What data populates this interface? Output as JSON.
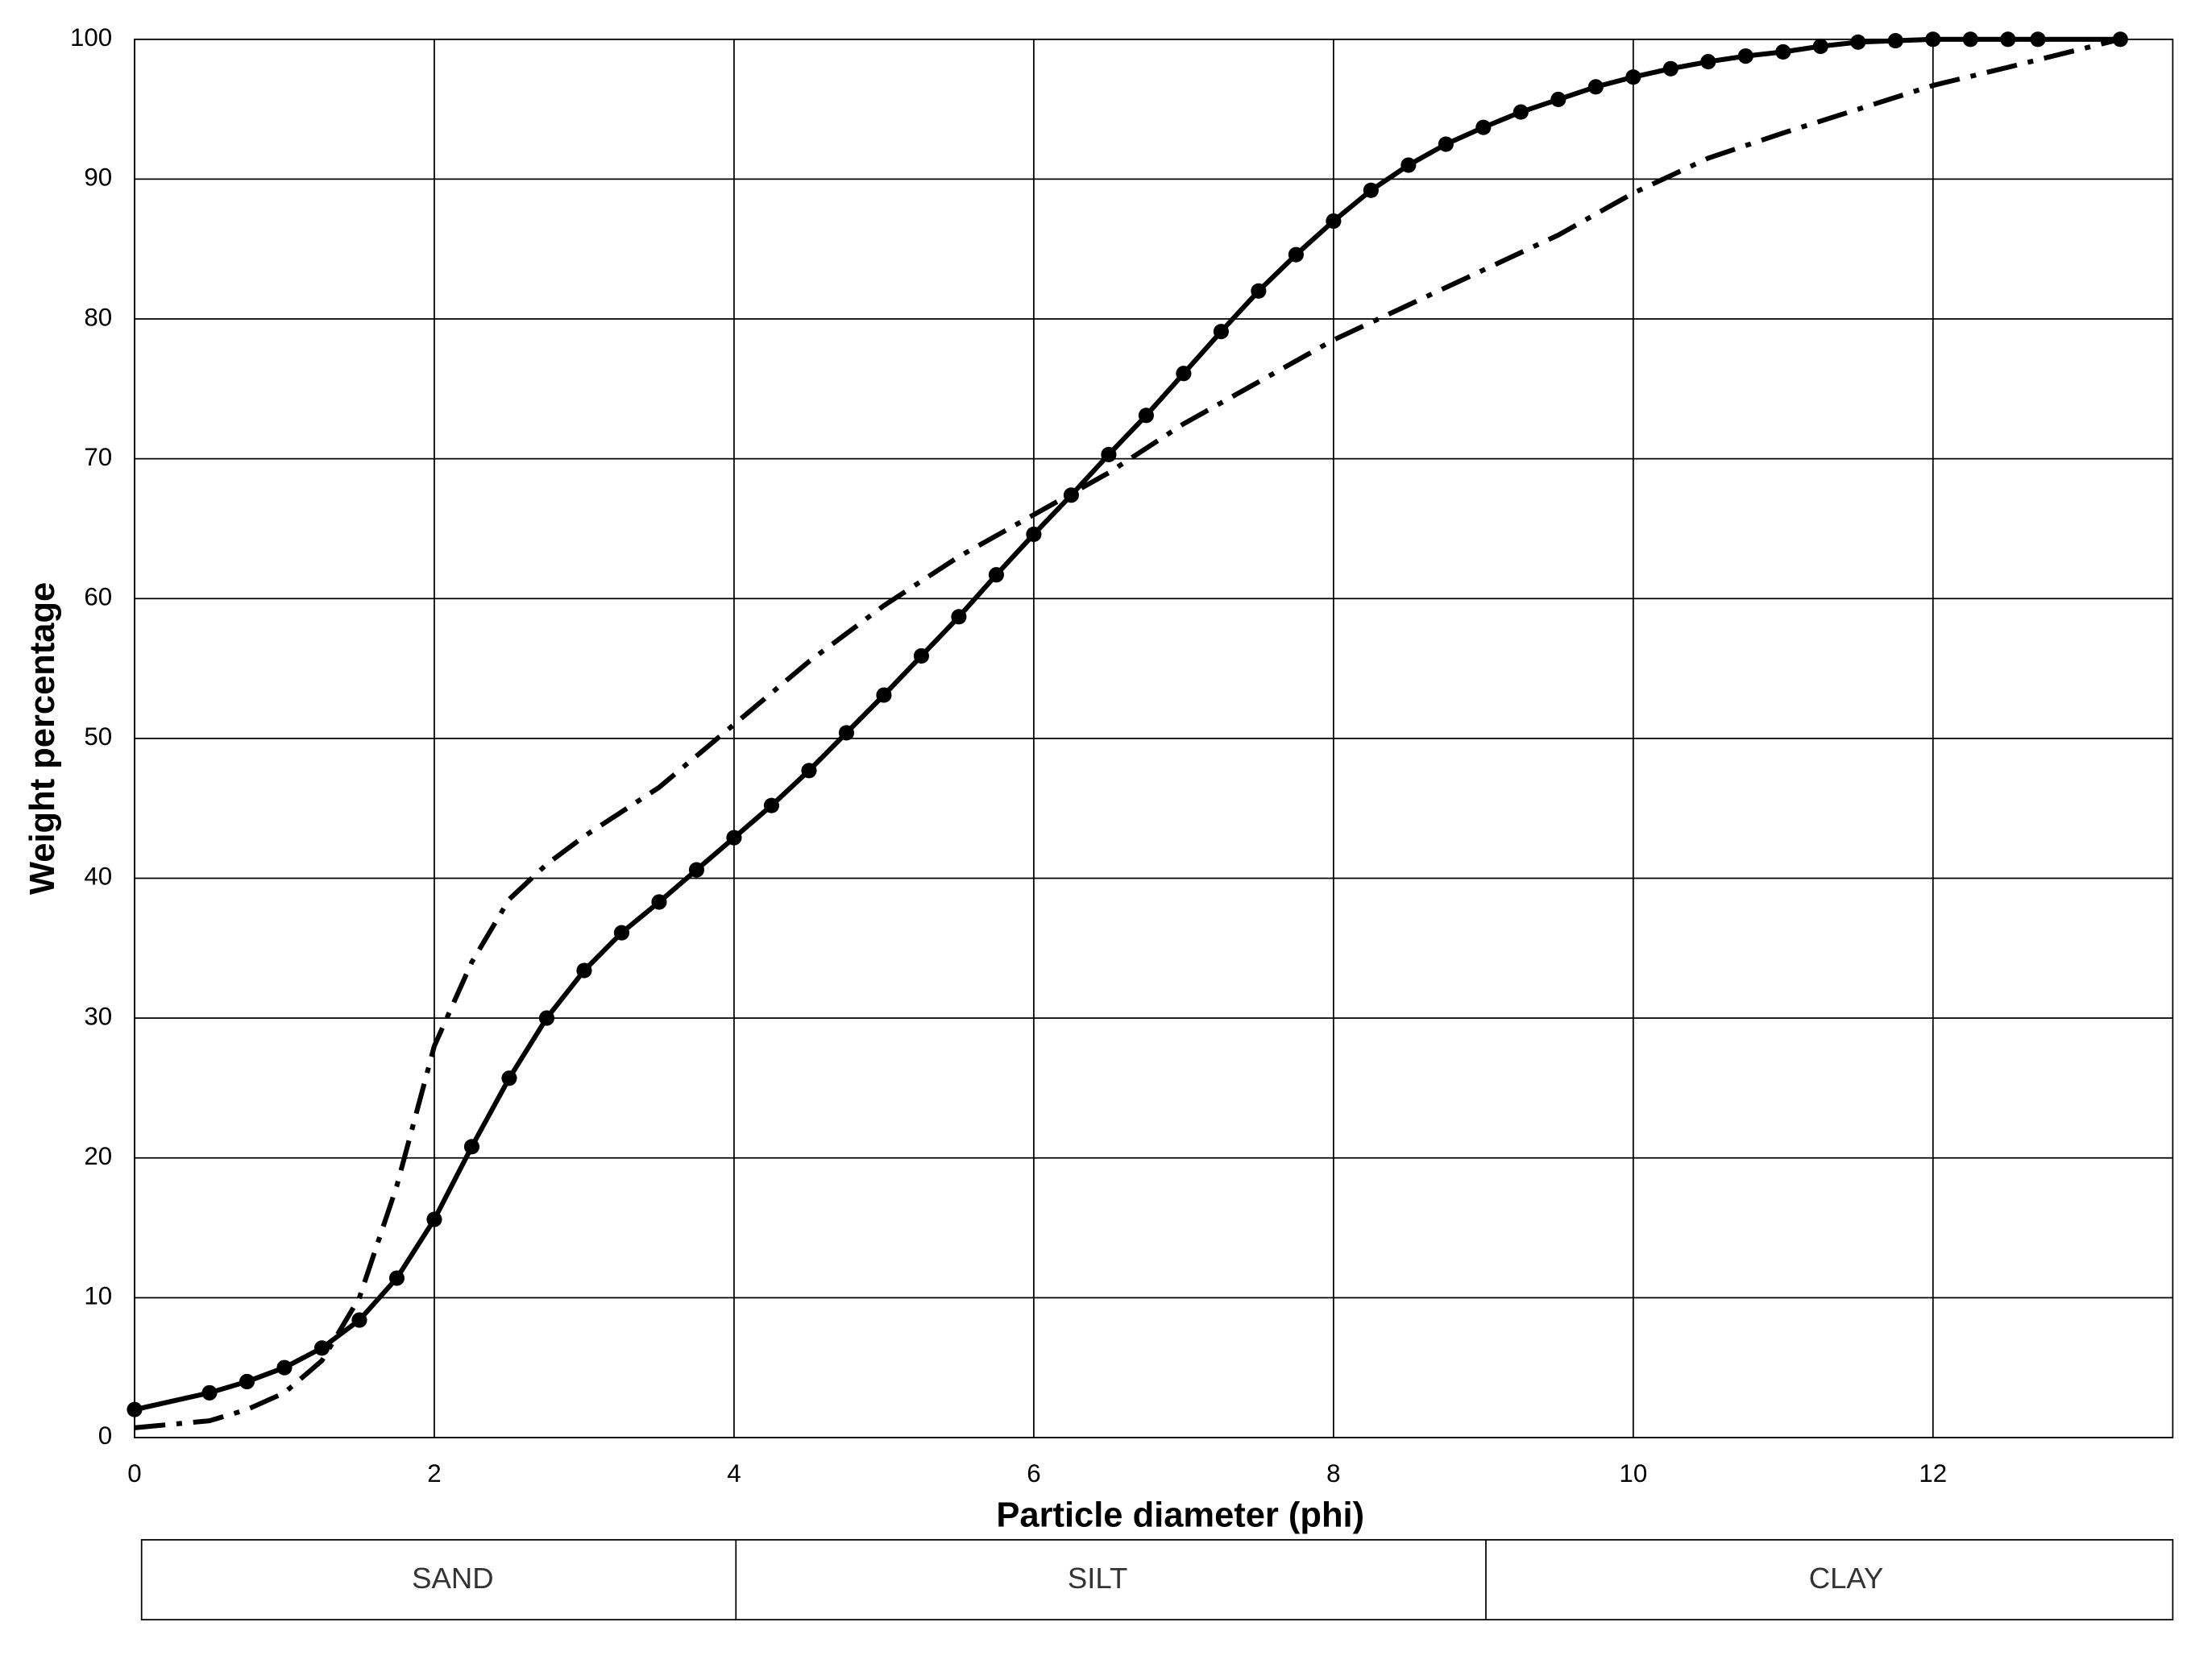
{
  "chart_data": {
    "type": "line",
    "xlabel": "Particle diameter (phi)",
    "ylabel": "Weight percentage",
    "xlim": [
      0,
      13.6
    ],
    "xticks": [
      0,
      2,
      4,
      6,
      8,
      10,
      12
    ],
    "ylim": [
      0,
      100
    ],
    "yticks": [
      0,
      10,
      20,
      30,
      40,
      50,
      60,
      70,
      80,
      90,
      100
    ],
    "grid": true,
    "series": [
      {
        "color": "#000000",
        "style": "solid",
        "markers": true,
        "x": [
          0,
          0.5,
          0.75,
          1,
          1.25,
          1.5,
          1.75,
          2,
          2.25,
          2.5,
          2.75,
          3,
          3.25,
          3.5,
          3.75,
          4,
          4.25,
          4.5,
          4.75,
          5,
          5.25,
          5.5,
          5.75,
          6,
          6.25,
          6.5,
          6.75,
          7,
          7.25,
          7.5,
          7.75,
          8,
          8.25,
          8.5,
          8.75,
          9,
          9.25,
          9.5,
          9.75,
          10,
          10.25,
          10.5,
          10.75,
          11,
          11.25,
          11.5,
          11.75,
          12,
          12.25,
          12.5,
          12.7,
          13.25
        ],
        "values": [
          2,
          3.2,
          4,
          5,
          6.4,
          8.4,
          11.4,
          15.6,
          20.8,
          25.7,
          30,
          33.4,
          36.1,
          38.3,
          40.6,
          42.9,
          45.2,
          47.7,
          50.4,
          53.1,
          55.9,
          58.7,
          61.7,
          64.6,
          67.4,
          70.3,
          73.1,
          76.1,
          79.1,
          82,
          84.6,
          87,
          89.2,
          91,
          92.5,
          93.7,
          94.8,
          95.7,
          96.6,
          97.3,
          97.9,
          98.4,
          98.8,
          99.1,
          99.5,
          99.8,
          99.9,
          100,
          100,
          100,
          100,
          100
        ]
      },
      {
        "color": "#000000",
        "style": "dashdot",
        "markers": false,
        "x": [
          0,
          0.5,
          0.75,
          1,
          1.25,
          1.5,
          1.75,
          2,
          2.25,
          2.5,
          2.75,
          3,
          3.5,
          4,
          4.5,
          5,
          5.5,
          6,
          6.5,
          7,
          7.5,
          8,
          8.5,
          9,
          9.5,
          10,
          10.5,
          11,
          11.5,
          12,
          12.5,
          13.25
        ],
        "values": [
          0.7,
          1.2,
          2,
          3.2,
          5.5,
          10,
          18,
          28,
          34,
          38.5,
          41,
          43,
          46.5,
          51,
          55.5,
          59.5,
          63,
          66,
          69,
          72.5,
          75.5,
          78.5,
          81,
          83.5,
          86,
          89,
          91.5,
          93.3,
          95,
          96.7,
          98,
          100
        ]
      }
    ],
    "zones": [
      "SAND",
      "SILT",
      "CLAY"
    ]
  }
}
